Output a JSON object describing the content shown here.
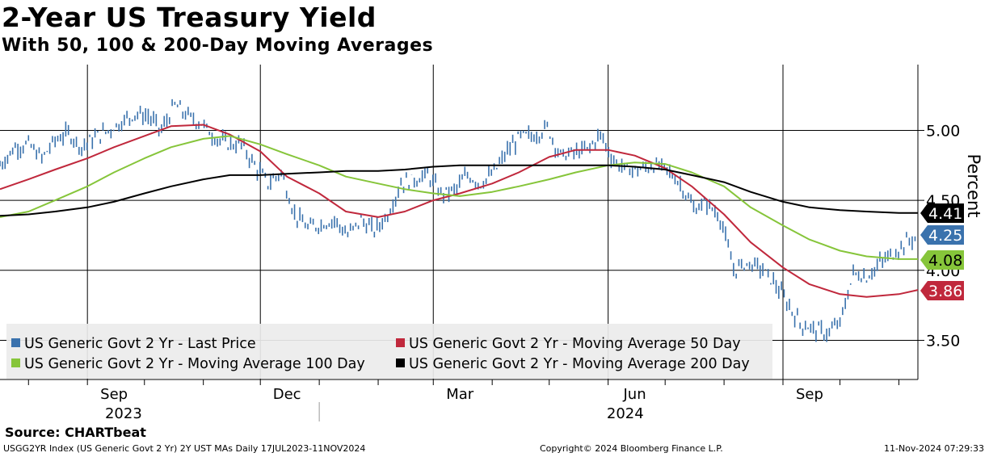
{
  "header": {
    "title": "2-Year US Treasury Yield",
    "subtitle": "With 50, 100 & 200-Day Moving Averages"
  },
  "footer": {
    "source": "Source: CHARTbeat",
    "index_info": "USGG2YR Index (US Generic Govt 2 Yr) 2Y UST MAs  Daily 17JUL2023-11NOV2024",
    "copyright": "Copyright© 2024 Bloomberg Finance L.P.",
    "timestamp": "11-Nov-2024 07:29:33"
  },
  "chart_data": {
    "type": "line",
    "title": "2-Year US Treasury Yield",
    "subtitle": "With 50, 100 & 200-Day Moving Averages",
    "ylabel": "Percent",
    "ylim": [
      3.22,
      5.47
    ],
    "yticks": [
      "5.00",
      "4.50",
      "4.00",
      "3.50"
    ],
    "x_range": [
      "2023-07-17",
      "2024-11-11"
    ],
    "month_ticks": [
      {
        "label": "Sep",
        "date": "2023-09-15"
      },
      {
        "label": "Dec",
        "date": "2023-12-15"
      },
      {
        "label": "Mar",
        "date": "2024-03-15"
      },
      {
        "label": "Jun",
        "date": "2024-06-15"
      },
      {
        "label": "Sep",
        "date": "2024-09-15"
      }
    ],
    "vertical_gridlines": [
      "2023-09-01",
      "2023-12-01",
      "2024-03-01",
      "2024-06-01",
      "2024-09-01"
    ],
    "year_labels": [
      {
        "label": "2023",
        "date": "2023-09-20"
      },
      {
        "label": "2024",
        "date": "2024-06-10"
      }
    ],
    "year_divider": "2024-01-01",
    "grid": true,
    "legend_position": "bottom-left",
    "series": [
      {
        "name": "US Generic Govt 2 Yr - Last Price",
        "color": "#3a72ad",
        "style": "bars",
        "last_value": "4.25",
        "points": [
          [
            "2023-07-17",
            4.75
          ],
          [
            "2023-07-25",
            4.88
          ],
          [
            "2023-08-01",
            4.9
          ],
          [
            "2023-08-08",
            4.8
          ],
          [
            "2023-08-15",
            4.93
          ],
          [
            "2023-08-22",
            4.98
          ],
          [
            "2023-08-29",
            4.88
          ],
          [
            "2023-09-05",
            4.95
          ],
          [
            "2023-09-12",
            5.0
          ],
          [
            "2023-09-19",
            5.06
          ],
          [
            "2023-09-26",
            5.12
          ],
          [
            "2023-10-03",
            5.1
          ],
          [
            "2023-10-10",
            5.0
          ],
          [
            "2023-10-17",
            5.18
          ],
          [
            "2023-10-24",
            5.1
          ],
          [
            "2023-10-31",
            5.05
          ],
          [
            "2023-11-07",
            4.95
          ],
          [
            "2023-11-14",
            4.9
          ],
          [
            "2023-11-21",
            4.9
          ],
          [
            "2023-11-28",
            4.75
          ],
          [
            "2023-12-05",
            4.62
          ],
          [
            "2023-12-12",
            4.7
          ],
          [
            "2023-12-19",
            4.4
          ],
          [
            "2023-12-26",
            4.3
          ],
          [
            "2024-01-02",
            4.33
          ],
          [
            "2024-01-09",
            4.36
          ],
          [
            "2024-01-16",
            4.25
          ],
          [
            "2024-01-23",
            4.36
          ],
          [
            "2024-01-30",
            4.28
          ],
          [
            "2024-02-06",
            4.4
          ],
          [
            "2024-02-13",
            4.62
          ],
          [
            "2024-02-20",
            4.65
          ],
          [
            "2024-02-27",
            4.68
          ],
          [
            "2024-03-05",
            4.55
          ],
          [
            "2024-03-12",
            4.57
          ],
          [
            "2024-03-19",
            4.68
          ],
          [
            "2024-03-26",
            4.62
          ],
          [
            "2024-04-02",
            4.7
          ],
          [
            "2024-04-09",
            4.85
          ],
          [
            "2024-04-16",
            4.96
          ],
          [
            "2024-04-23",
            4.96
          ],
          [
            "2024-04-30",
            5.02
          ],
          [
            "2024-05-07",
            4.82
          ],
          [
            "2024-05-14",
            4.84
          ],
          [
            "2024-05-21",
            4.86
          ],
          [
            "2024-05-28",
            4.97
          ],
          [
            "2024-06-04",
            4.78
          ],
          [
            "2024-06-11",
            4.72
          ],
          [
            "2024-06-18",
            4.72
          ],
          [
            "2024-06-25",
            4.75
          ],
          [
            "2024-07-02",
            4.72
          ],
          [
            "2024-07-09",
            4.62
          ],
          [
            "2024-07-16",
            4.44
          ],
          [
            "2024-07-23",
            4.48
          ],
          [
            "2024-07-30",
            4.38
          ],
          [
            "2024-08-06",
            4.0
          ],
          [
            "2024-08-13",
            4.05
          ],
          [
            "2024-08-20",
            4.02
          ],
          [
            "2024-08-27",
            3.92
          ],
          [
            "2024-09-03",
            3.77
          ],
          [
            "2024-09-10",
            3.62
          ],
          [
            "2024-09-17",
            3.58
          ],
          [
            "2024-09-24",
            3.55
          ],
          [
            "2024-10-01",
            3.62
          ],
          [
            "2024-10-08",
            3.98
          ],
          [
            "2024-10-15",
            3.95
          ],
          [
            "2024-10-22",
            4.05
          ],
          [
            "2024-10-29",
            4.12
          ],
          [
            "2024-11-05",
            4.2
          ],
          [
            "2024-11-11",
            4.25
          ]
        ]
      },
      {
        "name": "US Generic Govt 2 Yr - Moving Average 50 Day",
        "color": "#c0283c",
        "style": "line",
        "last_value": "3.86",
        "points": [
          [
            "2023-07-17",
            4.58
          ],
          [
            "2023-08-01",
            4.65
          ],
          [
            "2023-08-15",
            4.72
          ],
          [
            "2023-09-01",
            4.8
          ],
          [
            "2023-09-15",
            4.88
          ],
          [
            "2023-10-01",
            4.96
          ],
          [
            "2023-10-15",
            5.03
          ],
          [
            "2023-11-01",
            5.04
          ],
          [
            "2023-11-15",
            4.97
          ],
          [
            "2023-12-01",
            4.85
          ],
          [
            "2023-12-15",
            4.67
          ],
          [
            "2024-01-01",
            4.55
          ],
          [
            "2024-01-15",
            4.42
          ],
          [
            "2024-02-01",
            4.38
          ],
          [
            "2024-02-15",
            4.42
          ],
          [
            "2024-03-01",
            4.5
          ],
          [
            "2024-03-15",
            4.55
          ],
          [
            "2024-04-01",
            4.62
          ],
          [
            "2024-04-15",
            4.7
          ],
          [
            "2024-05-01",
            4.81
          ],
          [
            "2024-05-15",
            4.86
          ],
          [
            "2024-06-01",
            4.86
          ],
          [
            "2024-06-15",
            4.82
          ],
          [
            "2024-07-01",
            4.73
          ],
          [
            "2024-07-15",
            4.6
          ],
          [
            "2024-08-01",
            4.4
          ],
          [
            "2024-08-15",
            4.2
          ],
          [
            "2024-09-01",
            4.02
          ],
          [
            "2024-09-15",
            3.9
          ],
          [
            "2024-10-01",
            3.83
          ],
          [
            "2024-10-15",
            3.81
          ],
          [
            "2024-11-01",
            3.83
          ],
          [
            "2024-11-11",
            3.86
          ]
        ]
      },
      {
        "name": "US Generic Govt 2 Yr - Moving Average 100 Day",
        "color": "#86c53a",
        "style": "line",
        "last_value": "4.08",
        "points": [
          [
            "2023-07-17",
            4.38
          ],
          [
            "2023-08-01",
            4.42
          ],
          [
            "2023-08-15",
            4.5
          ],
          [
            "2023-09-01",
            4.6
          ],
          [
            "2023-09-15",
            4.7
          ],
          [
            "2023-10-01",
            4.8
          ],
          [
            "2023-10-15",
            4.88
          ],
          [
            "2023-11-01",
            4.94
          ],
          [
            "2023-11-15",
            4.96
          ],
          [
            "2023-12-01",
            4.9
          ],
          [
            "2023-12-15",
            4.83
          ],
          [
            "2024-01-01",
            4.75
          ],
          [
            "2024-01-15",
            4.67
          ],
          [
            "2024-02-01",
            4.62
          ],
          [
            "2024-02-15",
            4.58
          ],
          [
            "2024-03-01",
            4.55
          ],
          [
            "2024-03-15",
            4.53
          ],
          [
            "2024-04-01",
            4.56
          ],
          [
            "2024-04-15",
            4.6
          ],
          [
            "2024-05-01",
            4.65
          ],
          [
            "2024-05-15",
            4.7
          ],
          [
            "2024-06-01",
            4.75
          ],
          [
            "2024-06-15",
            4.77
          ],
          [
            "2024-07-01",
            4.76
          ],
          [
            "2024-07-15",
            4.7
          ],
          [
            "2024-08-01",
            4.6
          ],
          [
            "2024-08-15",
            4.45
          ],
          [
            "2024-09-01",
            4.32
          ],
          [
            "2024-09-15",
            4.22
          ],
          [
            "2024-10-01",
            4.14
          ],
          [
            "2024-10-15",
            4.1
          ],
          [
            "2024-11-01",
            4.08
          ],
          [
            "2024-11-11",
            4.08
          ]
        ]
      },
      {
        "name": "US Generic Govt 2 Yr - Moving Average 200 Day",
        "color": "#000000",
        "style": "line",
        "last_value": "4.41",
        "points": [
          [
            "2023-07-17",
            4.39
          ],
          [
            "2023-08-01",
            4.4
          ],
          [
            "2023-08-15",
            4.42
          ],
          [
            "2023-09-01",
            4.45
          ],
          [
            "2023-09-15",
            4.49
          ],
          [
            "2023-10-01",
            4.55
          ],
          [
            "2023-10-15",
            4.6
          ],
          [
            "2023-11-01",
            4.65
          ],
          [
            "2023-11-15",
            4.68
          ],
          [
            "2023-12-01",
            4.68
          ],
          [
            "2023-12-15",
            4.69
          ],
          [
            "2024-01-01",
            4.7
          ],
          [
            "2024-01-15",
            4.71
          ],
          [
            "2024-02-01",
            4.71
          ],
          [
            "2024-02-15",
            4.72
          ],
          [
            "2024-03-01",
            4.74
          ],
          [
            "2024-03-15",
            4.75
          ],
          [
            "2024-04-01",
            4.75
          ],
          [
            "2024-04-15",
            4.75
          ],
          [
            "2024-05-01",
            4.75
          ],
          [
            "2024-05-15",
            4.75
          ],
          [
            "2024-06-01",
            4.75
          ],
          [
            "2024-06-15",
            4.74
          ],
          [
            "2024-07-01",
            4.72
          ],
          [
            "2024-07-15",
            4.68
          ],
          [
            "2024-08-01",
            4.63
          ],
          [
            "2024-08-15",
            4.56
          ],
          [
            "2024-09-01",
            4.49
          ],
          [
            "2024-09-15",
            4.45
          ],
          [
            "2024-10-01",
            4.43
          ],
          [
            "2024-10-15",
            4.42
          ],
          [
            "2024-11-01",
            4.41
          ],
          [
            "2024-11-11",
            4.41
          ]
        ]
      }
    ]
  }
}
